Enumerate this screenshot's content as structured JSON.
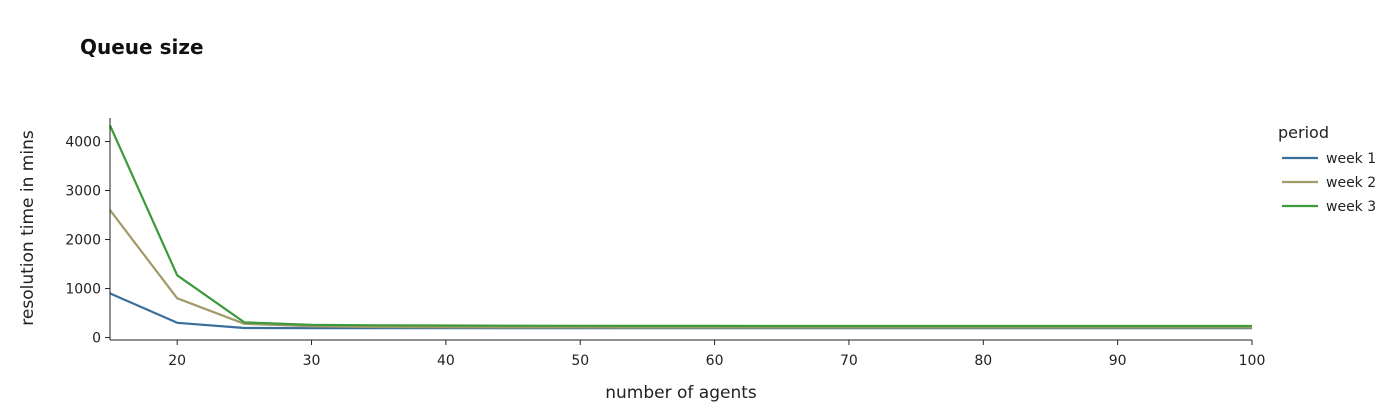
{
  "chart_data": {
    "type": "line",
    "title": "Queue size",
    "xlabel": "number of agents",
    "ylabel": "resolution time in mins",
    "xlim": [
      15,
      100
    ],
    "ylim": [
      -50,
      4480
    ],
    "x_ticks": [
      20,
      30,
      40,
      50,
      60,
      70,
      80,
      90,
      100
    ],
    "y_ticks": [
      0,
      1000,
      2000,
      3000,
      4000
    ],
    "grid": false,
    "legend_title": "period",
    "legend_position": "right",
    "x": [
      15,
      20,
      25,
      30,
      35,
      40,
      45,
      50,
      55,
      60,
      65,
      70,
      75,
      80,
      85,
      90,
      95,
      100
    ],
    "series": [
      {
        "name": "week 1",
        "color": "#3a6f9a",
        "values": [
          900,
          300,
          195,
          190,
          190,
          190,
          190,
          190,
          190,
          190,
          190,
          190,
          190,
          190,
          190,
          190,
          190,
          190
        ]
      },
      {
        "name": "week 2",
        "color": "#a39a6a",
        "values": [
          2600,
          800,
          280,
          230,
          215,
          210,
          208,
          207,
          206,
          206,
          205,
          205,
          205,
          205,
          205,
          205,
          205,
          205
        ]
      },
      {
        "name": "week 3",
        "color": "#3c9a3c",
        "values": [
          4330,
          1270,
          310,
          260,
          250,
          245,
          242,
          240,
          238,
          237,
          236,
          236,
          235,
          235,
          235,
          235,
          235,
          235
        ]
      }
    ]
  }
}
